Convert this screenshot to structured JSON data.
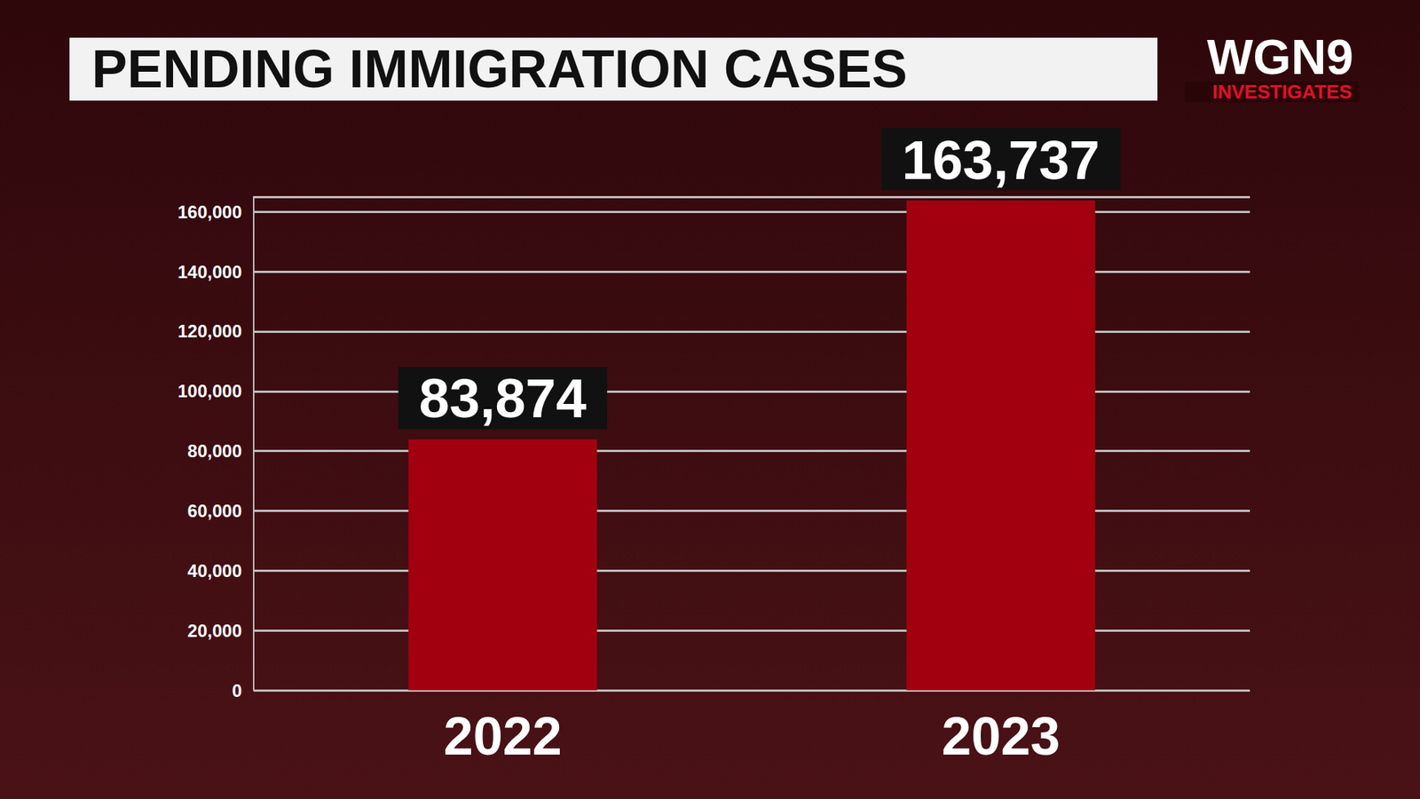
{
  "chart_data": {
    "type": "bar",
    "title": "PENDING IMMIGRATION CASES",
    "annotations": [
      "WGN9",
      "INVESTIGATES"
    ],
    "categories": [
      "2022",
      "2023"
    ],
    "values": [
      83874,
      163737
    ],
    "value_labels": [
      "83,874",
      "163,737"
    ],
    "data_labels": true,
    "color": "#a3000f",
    "ylim": [
      0,
      165000
    ],
    "yticks": [
      0,
      {
        "value": 20000,
        "label": "20,000"
      },
      {
        "value": 40000,
        "label": "40,000"
      },
      {
        "value": 60000,
        "label": "60,000"
      },
      {
        "value": 80000,
        "label": "80,000"
      },
      {
        "value": 100000,
        "label": "100,000"
      },
      {
        "value": 120000,
        "label": "120,000"
      },
      {
        "value": 140000,
        "label": "140,000"
      },
      {
        "value": 160000,
        "label": "160,000"
      }
    ],
    "grid": true
  }
}
